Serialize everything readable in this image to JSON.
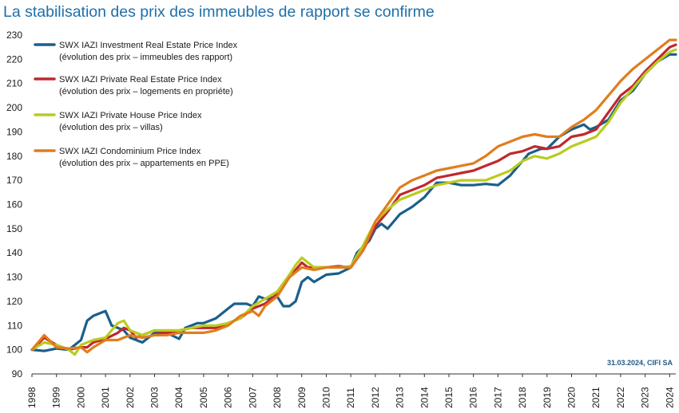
{
  "chart_data": {
    "type": "line",
    "title": "La stabilisation des prix des immeubles de rapport se confirme",
    "xlabel": "",
    "ylabel": "",
    "ylim": [
      90,
      230
    ],
    "yticks": [
      90,
      100,
      110,
      120,
      130,
      140,
      150,
      160,
      170,
      180,
      190,
      200,
      210,
      220,
      230
    ],
    "xlim": [
      1998,
      2024.25
    ],
    "xticks": [
      "1998",
      "1999",
      "2000",
      "2001",
      "2002",
      "2003",
      "2004",
      "2005",
      "2006",
      "2007",
      "2008",
      "2009",
      "2010",
      "2011",
      "2012",
      "2013",
      "2014",
      "2015",
      "2016",
      "2017",
      "2018",
      "2019",
      "2020",
      "2021",
      "2022",
      "2023",
      "2024"
    ],
    "grid": false,
    "legend_position": "top-left",
    "source_note": "31.03.2024, CIFI SA",
    "series": [
      {
        "name": "SWX IAZI Investment Real Estate Price Index",
        "subtitle": "(évolution des prix – immeubles des rapport)",
        "color": "#1a5f8c",
        "points": [
          [
            1998,
            100
          ],
          [
            1998.5,
            99.5
          ],
          [
            1999,
            100.5
          ],
          [
            1999.5,
            100
          ],
          [
            2000,
            104
          ],
          [
            2000.25,
            112
          ],
          [
            2000.5,
            114
          ],
          [
            2000.75,
            115
          ],
          [
            2001,
            116
          ],
          [
            2001.25,
            110
          ],
          [
            2001.5,
            109
          ],
          [
            2001.75,
            108
          ],
          [
            2002,
            105
          ],
          [
            2002.25,
            104
          ],
          [
            2002.5,
            103
          ],
          [
            2003,
            107
          ],
          [
            2003.5,
            107
          ],
          [
            2004,
            104.5
          ],
          [
            2004.25,
            109
          ],
          [
            2004.75,
            111
          ],
          [
            2005,
            111
          ],
          [
            2005.5,
            113
          ],
          [
            2006,
            117
          ],
          [
            2006.25,
            119
          ],
          [
            2006.75,
            119
          ],
          [
            2007,
            118
          ],
          [
            2007.25,
            122
          ],
          [
            2007.5,
            121
          ],
          [
            2008,
            122
          ],
          [
            2008.25,
            118
          ],
          [
            2008.5,
            118
          ],
          [
            2008.75,
            120
          ],
          [
            2009,
            128
          ],
          [
            2009.25,
            130
          ],
          [
            2009.5,
            128
          ],
          [
            2010,
            131
          ],
          [
            2010.5,
            131.5
          ],
          [
            2011,
            134
          ],
          [
            2011.25,
            140
          ],
          [
            2011.75,
            145
          ],
          [
            2012,
            150
          ],
          [
            2012.25,
            152
          ],
          [
            2012.5,
            150
          ],
          [
            2013,
            156
          ],
          [
            2013.5,
            159
          ],
          [
            2014,
            163
          ],
          [
            2014.5,
            169
          ],
          [
            2015,
            169
          ],
          [
            2015.5,
            168
          ],
          [
            2016,
            168
          ],
          [
            2016.5,
            168.5
          ],
          [
            2017,
            168
          ],
          [
            2017.5,
            172
          ],
          [
            2018,
            178
          ],
          [
            2018.25,
            181
          ],
          [
            2018.75,
            183
          ],
          [
            2019,
            183
          ],
          [
            2019.5,
            188
          ],
          [
            2020,
            191
          ],
          [
            2020.5,
            193
          ],
          [
            2020.75,
            191
          ],
          [
            2021,
            192
          ],
          [
            2021.5,
            195
          ],
          [
            2022,
            203
          ],
          [
            2022.5,
            207
          ],
          [
            2023,
            214
          ],
          [
            2023.5,
            219
          ],
          [
            2024,
            222
          ],
          [
            2024.25,
            222
          ]
        ]
      },
      {
        "name": "SWX IAZI Private Real Estate Price Index",
        "subtitle": "(évolution des prix – logements en propriéte)",
        "color": "#c0282d",
        "points": [
          [
            1998,
            100
          ],
          [
            1998.5,
            105
          ],
          [
            1999,
            102
          ],
          [
            1999.5,
            100
          ],
          [
            2000,
            101
          ],
          [
            2000.25,
            101
          ],
          [
            2000.5,
            103
          ],
          [
            2001,
            104.5
          ],
          [
            2001.5,
            107
          ],
          [
            2001.75,
            109
          ],
          [
            2002,
            108
          ],
          [
            2002.25,
            105
          ],
          [
            2002.5,
            106
          ],
          [
            2003,
            108
          ],
          [
            2003.5,
            107
          ],
          [
            2004,
            108
          ],
          [
            2004.5,
            109
          ],
          [
            2005,
            109
          ],
          [
            2005.5,
            109
          ],
          [
            2006,
            111
          ],
          [
            2006.5,
            113
          ],
          [
            2007,
            117
          ],
          [
            2007.5,
            119
          ],
          [
            2008,
            123
          ],
          [
            2008.5,
            130
          ],
          [
            2009,
            136
          ],
          [
            2009.25,
            134
          ],
          [
            2009.75,
            134
          ],
          [
            2010,
            134
          ],
          [
            2010.5,
            134.5
          ],
          [
            2011,
            134
          ],
          [
            2011.5,
            141
          ],
          [
            2012,
            151
          ],
          [
            2012.5,
            157
          ],
          [
            2013,
            164
          ],
          [
            2013.5,
            166
          ],
          [
            2014,
            168
          ],
          [
            2014.5,
            171
          ],
          [
            2015,
            172
          ],
          [
            2015.5,
            173
          ],
          [
            2016,
            174
          ],
          [
            2016.5,
            176
          ],
          [
            2017,
            178
          ],
          [
            2017.5,
            181
          ],
          [
            2018,
            182
          ],
          [
            2018.5,
            184
          ],
          [
            2019,
            183
          ],
          [
            2019.5,
            184
          ],
          [
            2020,
            188
          ],
          [
            2020.5,
            189
          ],
          [
            2021,
            191
          ],
          [
            2021.5,
            198
          ],
          [
            2022,
            205
          ],
          [
            2022.5,
            209
          ],
          [
            2023,
            215
          ],
          [
            2023.5,
            220
          ],
          [
            2024,
            225
          ],
          [
            2024.25,
            226
          ]
        ]
      },
      {
        "name": "SWX IAZI Private House Price Index",
        "subtitle": "(évolution des prix – villas)",
        "color": "#b9cc1f",
        "points": [
          [
            1998,
            100
          ],
          [
            1998.5,
            103
          ],
          [
            1999,
            102
          ],
          [
            1999.5,
            100
          ],
          [
            1999.75,
            98
          ],
          [
            2000,
            102
          ],
          [
            2000.5,
            104
          ],
          [
            2001,
            105
          ],
          [
            2001.25,
            108
          ],
          [
            2001.5,
            111
          ],
          [
            2001.75,
            112
          ],
          [
            2002,
            108
          ],
          [
            2002.5,
            106
          ],
          [
            2003,
            108
          ],
          [
            2003.5,
            108
          ],
          [
            2004,
            108
          ],
          [
            2004.5,
            109
          ],
          [
            2005,
            110
          ],
          [
            2005.5,
            110
          ],
          [
            2006,
            111
          ],
          [
            2006.5,
            113
          ],
          [
            2007,
            118
          ],
          [
            2007.5,
            121
          ],
          [
            2008,
            124
          ],
          [
            2008.5,
            131
          ],
          [
            2008.75,
            135
          ],
          [
            2009,
            138
          ],
          [
            2009.5,
            134
          ],
          [
            2010,
            134
          ],
          [
            2010.5,
            134
          ],
          [
            2011,
            134.5
          ],
          [
            2011.5,
            143
          ],
          [
            2012,
            153
          ],
          [
            2012.5,
            158
          ],
          [
            2013,
            162
          ],
          [
            2013.5,
            164
          ],
          [
            2014,
            166
          ],
          [
            2014.5,
            168
          ],
          [
            2015,
            169
          ],
          [
            2015.5,
            170
          ],
          [
            2016,
            170
          ],
          [
            2016.5,
            170
          ],
          [
            2017,
            172
          ],
          [
            2017.5,
            174
          ],
          [
            2018,
            178
          ],
          [
            2018.5,
            180
          ],
          [
            2019,
            179
          ],
          [
            2019.5,
            181
          ],
          [
            2020,
            184
          ],
          [
            2020.5,
            186
          ],
          [
            2021,
            188
          ],
          [
            2021.5,
            194
          ],
          [
            2022,
            202
          ],
          [
            2022.5,
            208
          ],
          [
            2023,
            214
          ],
          [
            2023.5,
            219
          ],
          [
            2024,
            223
          ],
          [
            2024.25,
            224
          ]
        ]
      },
      {
        "name": "SWX IAZI Condominium Price Index",
        "subtitle": "(évolution des prix – appartements en PPE)",
        "color": "#e07d1e",
        "points": [
          [
            1998,
            100
          ],
          [
            1998.5,
            106
          ],
          [
            1999,
            101
          ],
          [
            1999.5,
            100.5
          ],
          [
            2000,
            101
          ],
          [
            2000.25,
            99
          ],
          [
            2000.5,
            101
          ],
          [
            2001,
            104
          ],
          [
            2001.5,
            104
          ],
          [
            2002,
            106
          ],
          [
            2002.5,
            105
          ],
          [
            2003,
            106
          ],
          [
            2003.5,
            106
          ],
          [
            2004,
            107
          ],
          [
            2004.5,
            107
          ],
          [
            2005,
            107
          ],
          [
            2005.5,
            108
          ],
          [
            2006,
            110
          ],
          [
            2006.5,
            114
          ],
          [
            2007,
            116
          ],
          [
            2007.25,
            114
          ],
          [
            2007.5,
            118
          ],
          [
            2008,
            122
          ],
          [
            2008.5,
            130
          ],
          [
            2009,
            134
          ],
          [
            2009.5,
            133
          ],
          [
            2010,
            134
          ],
          [
            2010.5,
            134
          ],
          [
            2011,
            134
          ],
          [
            2011.5,
            141
          ],
          [
            2012,
            153
          ],
          [
            2012.5,
            160
          ],
          [
            2013,
            167
          ],
          [
            2013.5,
            170
          ],
          [
            2014,
            172
          ],
          [
            2014.5,
            174
          ],
          [
            2015,
            175
          ],
          [
            2015.5,
            176
          ],
          [
            2016,
            177
          ],
          [
            2016.5,
            180
          ],
          [
            2017,
            184
          ],
          [
            2017.5,
            186
          ],
          [
            2018,
            188
          ],
          [
            2018.5,
            189
          ],
          [
            2019,
            188
          ],
          [
            2019.5,
            188
          ],
          [
            2020,
            192
          ],
          [
            2020.5,
            195
          ],
          [
            2021,
            199
          ],
          [
            2021.5,
            205
          ],
          [
            2022,
            211
          ],
          [
            2022.5,
            216
          ],
          [
            2023,
            220
          ],
          [
            2023.5,
            224
          ],
          [
            2024,
            228
          ],
          [
            2024.25,
            228
          ]
        ]
      }
    ]
  }
}
